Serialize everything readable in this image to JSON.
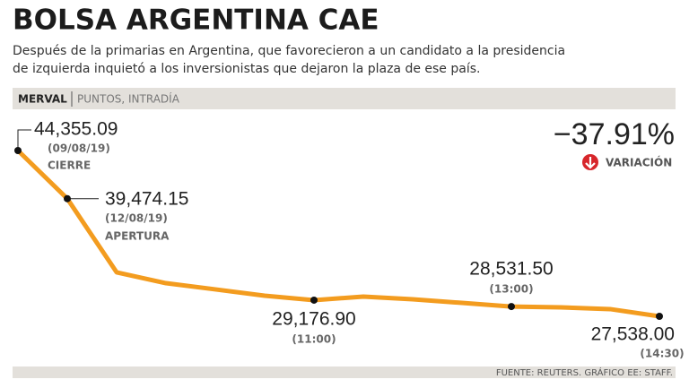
{
  "chart_data": {
    "type": "line",
    "title": "BOLSA ARGENTINA CAE",
    "subtitle": [
      "Después de la primarias en Argentina, que favorecieron a un candidato a la presidencia",
      "de izquierda inquietó a los inversionistas que dejaron la plaza de ese país."
    ],
    "index_name": "MERVAL",
    "units": "PUNTOS, INTRADÍA",
    "color": "#f39c1f",
    "values": [
      44355.09,
      39474.15,
      32000,
      30900,
      30270,
      29630,
      29176.9,
      29540,
      29270,
      28900,
      28531.5,
      28450,
      28270,
      27538.0
    ],
    "value_labels": [
      "44,355.09",
      "39,474.15",
      null,
      null,
      null,
      null,
      "29,176.90",
      null,
      null,
      null,
      "28,531.50",
      null,
      null,
      "27,538.00"
    ],
    "point_dates": [
      "(09/08/19)",
      "(12/08/19)",
      null,
      null,
      null,
      null,
      "(11:00)",
      null,
      null,
      null,
      "(13:00)",
      null,
      null,
      "(14:30)"
    ],
    "point_tags": [
      "CIERRE",
      "APERTURA",
      null,
      null,
      null,
      null,
      null,
      null,
      null,
      null,
      null,
      null,
      null,
      null
    ],
    "variation": -37.91,
    "variation_label": "−37.91%",
    "variation_text": "VARIACIÓN",
    "source": "FUENTE: REUTERS. GRÁFICO EE: STAFF."
  }
}
